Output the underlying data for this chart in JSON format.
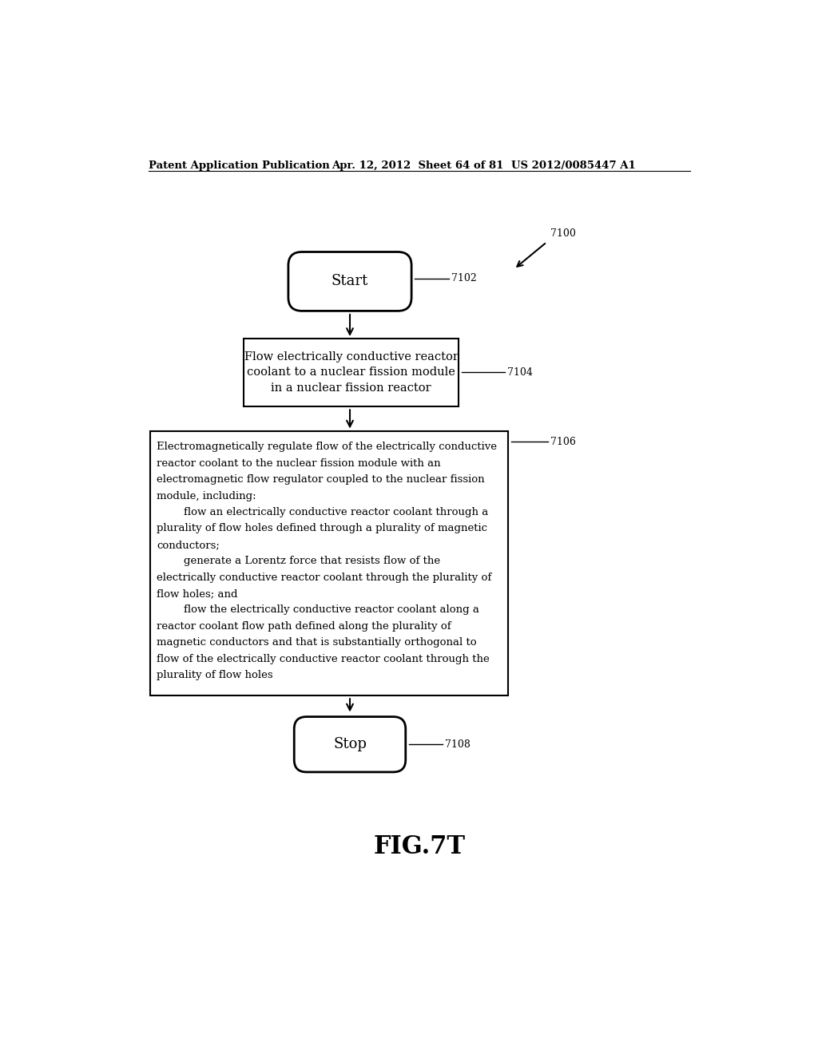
{
  "bg_color": "#ffffff",
  "header_left": "Patent Application Publication",
  "header_mid": "Apr. 12, 2012  Sheet 64 of 81",
  "header_right": "US 2012/0085447 A1",
  "fig_label": "FIG.7T",
  "start_label": "Start",
  "stop_label": "Stop",
  "ref_7100": "7100",
  "ref_7102": "7102",
  "ref_7104": "7104",
  "ref_7106": "7106",
  "ref_7108": "7108",
  "box1_text": "Flow electrically conductive reactor\ncoolant to a nuclear fission module\nin a nuclear fission reactor",
  "box2_lines": [
    "Electromagnetically regulate flow of the electrically conductive",
    "reactor coolant to the nuclear fission module with an",
    "electromagnetic flow regulator coupled to the nuclear fission",
    "module, including:",
    "        flow an electrically conductive reactor coolant through a",
    "plurality of flow holes defined through a plurality of magnetic",
    "conductors;",
    "        generate a Lorentz force that resists flow of the",
    "electrically conductive reactor coolant through the plurality of",
    "flow holes; and",
    "        flow the electrically conductive reactor coolant along a",
    "reactor coolant flow path defined along the plurality of",
    "magnetic conductors and that is substantially orthogonal to",
    "flow of the electrically conductive reactor coolant through the",
    "plurality of flow holes"
  ],
  "font_size_header": 9.5,
  "font_size_body": 10,
  "font_size_fig": 22
}
